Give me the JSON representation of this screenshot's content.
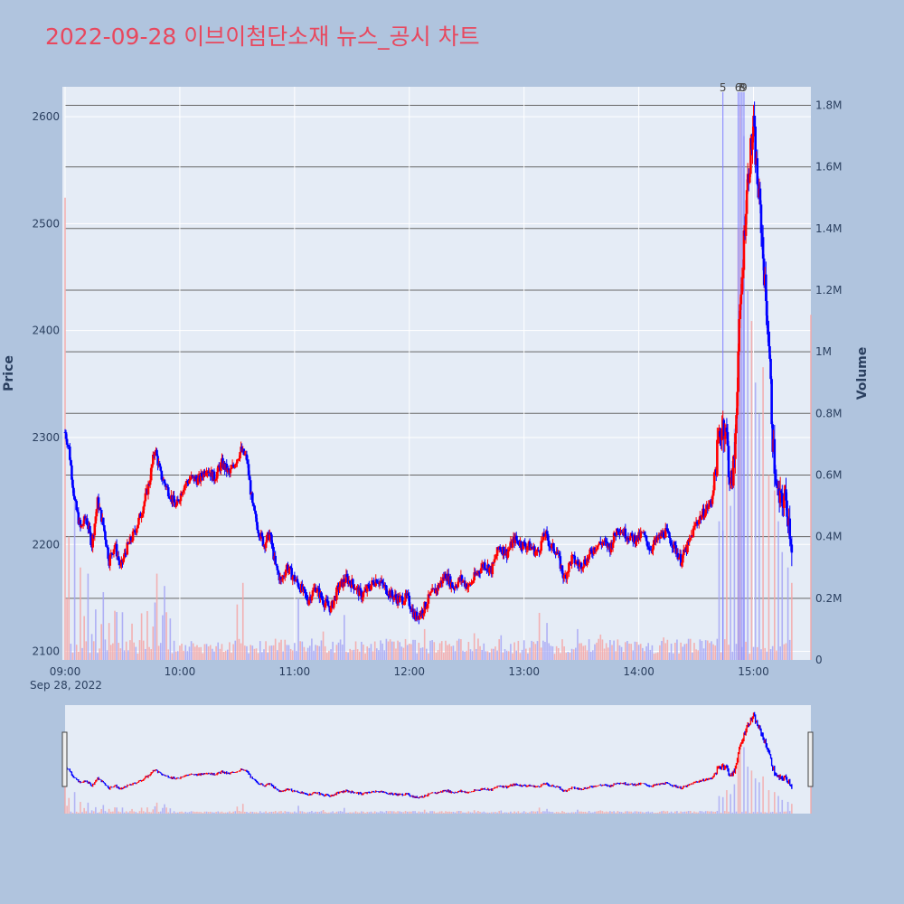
{
  "chart_data": {
    "type": "candlestick",
    "title": "2022-09-28 이브이첨단소재 뉴스_공시 차트",
    "ylabel": "Price",
    "y2label": "Volume",
    "date_label": "Sep 28, 2022",
    "ylim": [
      2092,
      2628
    ],
    "y2lim": [
      0,
      1.86
    ],
    "xlim": [
      "09:00",
      "15:30"
    ],
    "x_ticks": [
      "09:00",
      "10:00",
      "11:00",
      "12:00",
      "13:00",
      "14:00",
      "15:00"
    ],
    "y_ticks": [
      2100,
      2200,
      2300,
      2400,
      2500,
      2600
    ],
    "y2_ticks": [
      {
        "value": 0,
        "label": "0"
      },
      {
        "value": 0.2,
        "label": "0.2M"
      },
      {
        "value": 0.4,
        "label": "0.4M"
      },
      {
        "value": 0.6,
        "label": "0.6M"
      },
      {
        "value": 0.8,
        "label": "0.8M"
      },
      {
        "value": 1.0,
        "label": "1M"
      },
      {
        "value": 1.2,
        "label": "1.2M"
      },
      {
        "value": 1.4,
        "label": "1.4M"
      },
      {
        "value": 1.6,
        "label": "1.6M"
      },
      {
        "value": 1.8,
        "label": "1.8M"
      }
    ],
    "colors": {
      "up": "#ff0000",
      "down": "#0000ff",
      "up_volume": "#f4a6a6",
      "down_volume": "#a6a6f4",
      "news_line": "#8080ff"
    },
    "news_markers": [
      {
        "time": "14:44",
        "label": "5"
      },
      {
        "time": "14:52",
        "label": "6"
      },
      {
        "time": "14:53",
        "label": "7"
      },
      {
        "time": "14:54",
        "label": "8"
      },
      {
        "time": "14:55",
        "label": "9"
      }
    ],
    "price_path": [
      [
        "09:00",
        2305
      ],
      [
        "09:02",
        2290
      ],
      [
        "09:05",
        2240
      ],
      [
        "09:08",
        2215
      ],
      [
        "09:11",
        2225
      ],
      [
        "09:14",
        2200
      ],
      [
        "09:17",
        2240
      ],
      [
        "09:20",
        2218
      ],
      [
        "09:23",
        2185
      ],
      [
        "09:26",
        2200
      ],
      [
        "09:29",
        2178
      ],
      [
        "09:32",
        2195
      ],
      [
        "09:36",
        2210
      ],
      [
        "09:40",
        2230
      ],
      [
        "09:44",
        2258
      ],
      [
        "09:47",
        2290
      ],
      [
        "09:50",
        2265
      ],
      [
        "09:54",
        2250
      ],
      [
        "09:58",
        2235
      ],
      [
        "10:02",
        2255
      ],
      [
        "10:06",
        2262
      ],
      [
        "10:10",
        2260
      ],
      [
        "10:14",
        2272
      ],
      [
        "10:18",
        2262
      ],
      [
        "10:22",
        2276
      ],
      [
        "10:26",
        2266
      ],
      [
        "10:30",
        2281
      ],
      [
        "10:32",
        2288
      ],
      [
        "10:35",
        2280
      ],
      [
        "10:38",
        2236
      ],
      [
        "10:41",
        2214
      ],
      [
        "10:44",
        2200
      ],
      [
        "10:47",
        2210
      ],
      [
        "10:50",
        2180
      ],
      [
        "10:53",
        2165
      ],
      [
        "10:56",
        2180
      ],
      [
        "10:59",
        2170
      ],
      [
        "11:03",
        2160
      ],
      [
        "11:07",
        2148
      ],
      [
        "11:11",
        2160
      ],
      [
        "11:15",
        2147
      ],
      [
        "11:19",
        2140
      ],
      [
        "11:23",
        2160
      ],
      [
        "11:27",
        2168
      ],
      [
        "11:31",
        2162
      ],
      [
        "11:35",
        2152
      ],
      [
        "11:39",
        2160
      ],
      [
        "11:43",
        2168
      ],
      [
        "11:47",
        2160
      ],
      [
        "11:51",
        2152
      ],
      [
        "11:55",
        2148
      ],
      [
        "11:59",
        2150
      ],
      [
        "12:03",
        2132
      ],
      [
        "12:07",
        2138
      ],
      [
        "12:11",
        2152
      ],
      [
        "12:15",
        2160
      ],
      [
        "12:19",
        2172
      ],
      [
        "12:23",
        2160
      ],
      [
        "12:27",
        2168
      ],
      [
        "12:31",
        2160
      ],
      [
        "12:35",
        2172
      ],
      [
        "12:39",
        2182
      ],
      [
        "12:43",
        2176
      ],
      [
        "12:47",
        2198
      ],
      [
        "12:51",
        2192
      ],
      [
        "12:55",
        2205
      ],
      [
        "12:59",
        2200
      ],
      [
        "13:03",
        2198
      ],
      [
        "13:07",
        2192
      ],
      [
        "13:11",
        2210
      ],
      [
        "13:14",
        2198
      ],
      [
        "13:17",
        2194
      ],
      [
        "13:21",
        2168
      ],
      [
        "13:25",
        2187
      ],
      [
        "13:29",
        2180
      ],
      [
        "13:33",
        2186
      ],
      [
        "13:37",
        2198
      ],
      [
        "13:41",
        2202
      ],
      [
        "13:45",
        2197
      ],
      [
        "13:49",
        2216
      ],
      [
        "13:53",
        2210
      ],
      [
        "13:56",
        2206
      ],
      [
        "13:59",
        2205
      ],
      [
        "14:02",
        2210
      ],
      [
        "14:06",
        2196
      ],
      [
        "14:10",
        2205
      ],
      [
        "14:14",
        2212
      ],
      [
        "14:18",
        2200
      ],
      [
        "14:22",
        2185
      ],
      [
        "14:26",
        2200
      ],
      [
        "14:30",
        2220
      ],
      [
        "14:34",
        2230
      ],
      [
        "14:38",
        2240
      ],
      [
        "14:42",
        2300
      ],
      [
        "14:44",
        2315
      ],
      [
        "14:46",
        2300
      ],
      [
        "14:48",
        2250
      ],
      [
        "14:50",
        2280
      ],
      [
        "14:52",
        2380
      ],
      [
        "14:54",
        2450
      ],
      [
        "14:56",
        2520
      ],
      [
        "14:58",
        2560
      ],
      [
        "15:00",
        2590
      ],
      [
        "15:02",
        2540
      ],
      [
        "15:04",
        2500
      ],
      [
        "15:06",
        2440
      ],
      [
        "15:08",
        2390
      ],
      [
        "15:10",
        2300
      ],
      [
        "15:12",
        2250
      ],
      [
        "15:14",
        2238
      ],
      [
        "15:16",
        2245
      ],
      [
        "15:18",
        2230
      ],
      [
        "15:20",
        2200
      ]
    ],
    "volume_spikes": [
      [
        "09:00",
        1.5
      ],
      [
        "09:02",
        0.4
      ],
      [
        "09:05",
        0.55
      ],
      [
        "09:08",
        0.3
      ],
      [
        "09:12",
        0.28
      ],
      [
        "09:20",
        0.22
      ],
      [
        "09:48",
        0.28
      ],
      [
        "09:52",
        0.24
      ],
      [
        "10:30",
        0.18
      ],
      [
        "10:33",
        0.25
      ],
      [
        "11:02",
        0.2
      ],
      [
        "12:08",
        0.1
      ],
      [
        "12:48",
        0.08
      ],
      [
        "13:12",
        0.12
      ],
      [
        "13:28",
        0.1
      ],
      [
        "14:42",
        0.45
      ],
      [
        "14:44",
        0.42
      ],
      [
        "14:46",
        0.6
      ],
      [
        "14:48",
        0.5
      ],
      [
        "14:50",
        0.75
      ],
      [
        "14:52",
        1.4
      ],
      [
        "14:53",
        1.8
      ],
      [
        "14:55",
        1.7
      ],
      [
        "14:57",
        1.2
      ],
      [
        "14:59",
        1.1
      ],
      [
        "15:01",
        0.9
      ],
      [
        "15:03",
        0.8
      ],
      [
        "15:05",
        0.95
      ],
      [
        "15:08",
        0.6
      ],
      [
        "15:11",
        0.55
      ],
      [
        "15:13",
        0.45
      ],
      [
        "15:15",
        0.35
      ],
      [
        "15:18",
        0.3
      ],
      [
        "15:20",
        0.25
      ],
      [
        "15:30",
        1.12
      ]
    ]
  }
}
